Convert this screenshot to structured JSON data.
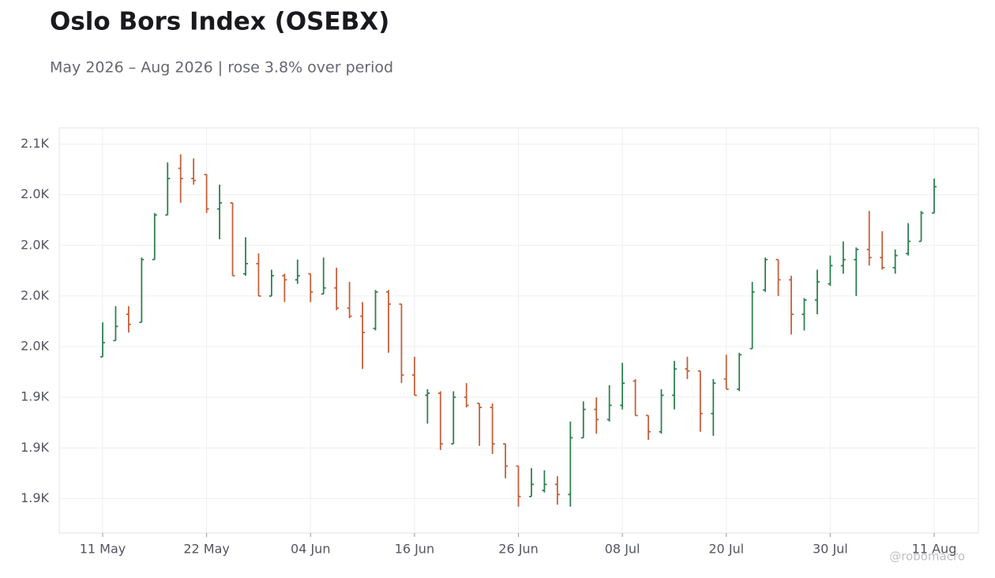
{
  "chart_data": {
    "type": "ohlc",
    "title": "Oslo Bors Index (OSEBX)",
    "subtitle": "May 2026 – Aug 2026 | rose 3.8% over period",
    "watermark": "@robomacro",
    "categories": [
      "11 May",
      null,
      null,
      null,
      null,
      null,
      null,
      null,
      "22 May",
      null,
      null,
      null,
      null,
      null,
      null,
      null,
      "04 Jun",
      null,
      null,
      null,
      null,
      null,
      null,
      null,
      "16 Jun",
      null,
      null,
      null,
      null,
      null,
      null,
      null,
      "26 Jun",
      null,
      null,
      null,
      null,
      null,
      null,
      null,
      "08 Jul",
      null,
      null,
      null,
      null,
      null,
      null,
      null,
      "20 Jul",
      null,
      null,
      null,
      null,
      null,
      null,
      null,
      "30 Jul",
      null,
      null,
      null,
      null,
      null,
      null,
      null,
      "11 Aug"
    ],
    "open": [
      1970,
      1978,
      1991,
      1987,
      2018,
      2040,
      2063,
      2058,
      2060,
      2043,
      2046,
      2011,
      2016,
      2000,
      2010,
      2008,
      2011,
      2001,
      2004,
      1994,
      1990,
      1984,
      2002,
      1996,
      1961,
      1951,
      1952,
      1927,
      1950,
      1947,
      1945,
      1927,
      1916,
      1901,
      1904,
      1907,
      1902,
      1930,
      1944,
      1939,
      1946,
      1958,
      1941,
      1933,
      1951,
      1964,
      1963,
      1942,
      1959,
      1954,
      1974,
      2003,
      2018,
      2008,
      1991,
      1998,
      2006,
      2015,
      2018,
      2023,
      2019,
      2014,
      2021,
      2027,
      2041
    ],
    "high": [
      1987,
      1995,
      1995,
      2019,
      2041,
      2066,
      2070,
      2068,
      2060,
      2055,
      2046,
      2029,
      2021,
      2013,
      2011,
      2018,
      2011,
      2019,
      2014,
      2007,
      1997,
      2003,
      2003,
      1996,
      1970,
      1954,
      1953,
      1953,
      1957,
      1947,
      1947,
      1927,
      1916,
      1915,
      1914,
      1911,
      1938,
      1948,
      1950,
      1956,
      1967,
      1959,
      1941,
      1954,
      1968,
      1970,
      1963,
      1959,
      1971,
      1972,
      2007,
      2019,
      2018,
      2010,
      1999,
      2013,
      2020,
      2027,
      2024,
      2042,
      2032,
      2023,
      2036,
      2042,
      2058
    ],
    "low": [
      1970,
      1978,
      1982,
      1987,
      2018,
      2040,
      2046,
      2055,
      2041,
      2028,
      2010,
      2010,
      2000,
      2000,
      1997,
      2006,
      1997,
      2001,
      1993,
      1989,
      1964,
      1983,
      1972,
      1957,
      1951,
      1937,
      1924,
      1927,
      1945,
      1926,
      1922,
      1910,
      1896,
      1901,
      1903,
      1897,
      1896,
      1930,
      1932,
      1938,
      1944,
      1941,
      1929,
      1932,
      1944,
      1959,
      1933,
      1931,
      1954,
      1953,
      1974,
      2002,
      2000,
      1981,
      1983,
      1991,
      2005,
      2011,
      2000,
      2015,
      2013,
      2011,
      2020,
      2027,
      2041
    ],
    "close": [
      1977,
      1985,
      1986,
      2018,
      2040,
      2058,
      2058,
      2057,
      2043,
      2046,
      2010,
      2016,
      2000,
      2010,
      2008,
      2010,
      2002,
      2004,
      1994,
      1990,
      1982,
      2002,
      1996,
      1961,
      1951,
      1952,
      1927,
      1950,
      1946,
      1945,
      1927,
      1916,
      1901,
      1907,
      1907,
      1902,
      1930,
      1944,
      1939,
      1946,
      1957,
      1941,
      1933,
      1951,
      1964,
      1963,
      1942,
      1957,
      1954,
      1971,
      2002,
      2018,
      2008,
      1991,
      1998,
      2007,
      2015,
      2018,
      2023,
      2019,
      2014,
      2020,
      2027,
      2041,
      2054
    ],
    "up_color": "#2e8050",
    "down_color": "#c4603c",
    "ylim": [
      1883,
      2083
    ],
    "yticks": [
      {
        "value": 1900,
        "label": "1.9K"
      },
      {
        "value": 1925,
        "label": "1.9K"
      },
      {
        "value": 1950,
        "label": "1.9K"
      },
      {
        "value": 1975,
        "label": "2.0K"
      },
      {
        "value": 2000,
        "label": "2.0K"
      },
      {
        "value": 2025,
        "label": "2.0K"
      },
      {
        "value": 2050,
        "label": "2.0K"
      },
      {
        "value": 2075,
        "label": "2.1K"
      }
    ],
    "grid": true
  }
}
